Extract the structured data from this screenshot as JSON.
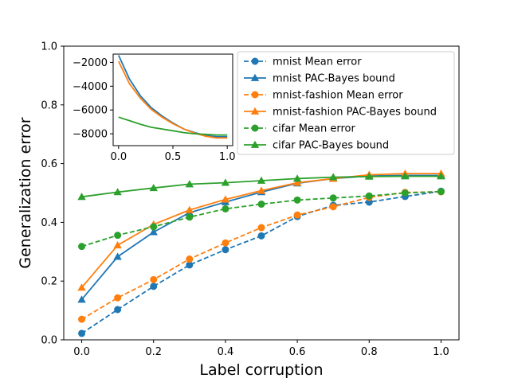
{
  "chart_data": [
    {
      "type": "line",
      "title": "",
      "xlabel": "Label corruption",
      "ylabel": "Generalization error",
      "xlim": [
        -0.05,
        1.05
      ],
      "ylim": [
        0.0,
        1.0
      ],
      "xticks": [
        0.0,
        0.2,
        0.4,
        0.6,
        0.8,
        1.0
      ],
      "xtick_labels": [
        "0.0",
        "0.2",
        "0.4",
        "0.6",
        "0.8",
        "1.0"
      ],
      "yticks": [
        0.0,
        0.2,
        0.4,
        0.6,
        0.8,
        1.0
      ],
      "ytick_labels": [
        "0.0",
        "0.2",
        "0.4",
        "0.6",
        "0.8",
        "1.0"
      ],
      "grid": false,
      "legend_position": "inside top-right",
      "x": [
        0.0,
        0.1,
        0.2,
        0.3,
        0.4,
        0.5,
        0.6,
        0.7,
        0.8,
        0.9,
        1.0
      ],
      "series": [
        {
          "name": "mnist Mean error",
          "color": "#1f77b4",
          "linestyle": "dashed",
          "marker": "circle",
          "values": [
            0.022,
            0.103,
            0.182,
            0.255,
            0.307,
            0.354,
            0.42,
            0.458,
            0.469,
            0.488,
            0.506
          ]
        },
        {
          "name": "mnist PAC-Bayes bound",
          "color": "#1f77b4",
          "linestyle": "solid",
          "marker": "triangle",
          "values": [
            0.137,
            0.283,
            0.367,
            0.433,
            0.469,
            0.503,
            0.533,
            0.549,
            0.558,
            0.56,
            0.56
          ]
        },
        {
          "name": "mnist-fashion Mean error",
          "color": "#ff7f0e",
          "linestyle": "dashed",
          "marker": "circle",
          "values": [
            0.07,
            0.143,
            0.205,
            0.275,
            0.33,
            0.382,
            0.425,
            0.453,
            0.485,
            0.502,
            0.504
          ]
        },
        {
          "name": "mnist-fashion PAC-Bayes bound",
          "color": "#ff7f0e",
          "linestyle": "solid",
          "marker": "triangle",
          "values": [
            0.178,
            0.322,
            0.393,
            0.442,
            0.478,
            0.508,
            0.535,
            0.549,
            0.562,
            0.566,
            0.566
          ]
        },
        {
          "name": "cifar Mean error",
          "color": "#2ca02c",
          "linestyle": "dashed",
          "marker": "circle",
          "values": [
            0.318,
            0.356,
            0.385,
            0.418,
            0.446,
            0.462,
            0.476,
            0.483,
            0.49,
            0.5,
            0.505
          ]
        },
        {
          "name": "cifar PAC-Bayes bound",
          "color": "#2ca02c",
          "linestyle": "solid",
          "marker": "triangle",
          "values": [
            0.487,
            0.503,
            0.517,
            0.53,
            0.535,
            0.542,
            0.549,
            0.554,
            0.556,
            0.557,
            0.557
          ]
        }
      ]
    },
    {
      "type": "line",
      "title": "",
      "xlabel": "",
      "ylabel": "",
      "xlim": [
        -0.05,
        1.05
      ],
      "ylim": [
        -9000,
        -1300
      ],
      "xticks": [
        0.0,
        0.5,
        1.0
      ],
      "xtick_labels": [
        "0.0",
        "0.5",
        "1.0"
      ],
      "yticks": [
        -2000,
        -4000,
        -6000,
        -8000
      ],
      "ytick_labels": [
        "−2000",
        "−4000",
        "−6000",
        "−8000"
      ],
      "grid": false,
      "x": [
        0.0,
        0.1,
        0.2,
        0.3,
        0.4,
        0.5,
        0.6,
        0.7,
        0.8,
        0.9,
        1.0
      ],
      "series": [
        {
          "color": "#1f77b4",
          "linestyle": "solid",
          "marker": "none",
          "values": [
            -1400,
            -3400,
            -4800,
            -5800,
            -6500,
            -7100,
            -7600,
            -7900,
            -8150,
            -8250,
            -8250
          ]
        },
        {
          "color": "#ff7f0e",
          "linestyle": "solid",
          "marker": "none",
          "values": [
            -1900,
            -3800,
            -5000,
            -5950,
            -6600,
            -7150,
            -7600,
            -7950,
            -8200,
            -8350,
            -8350
          ]
        },
        {
          "color": "#2ca02c",
          "linestyle": "solid",
          "marker": "none",
          "values": [
            -6600,
            -6900,
            -7200,
            -7450,
            -7600,
            -7750,
            -7900,
            -8000,
            -8050,
            -8100,
            -8100
          ]
        }
      ]
    }
  ]
}
